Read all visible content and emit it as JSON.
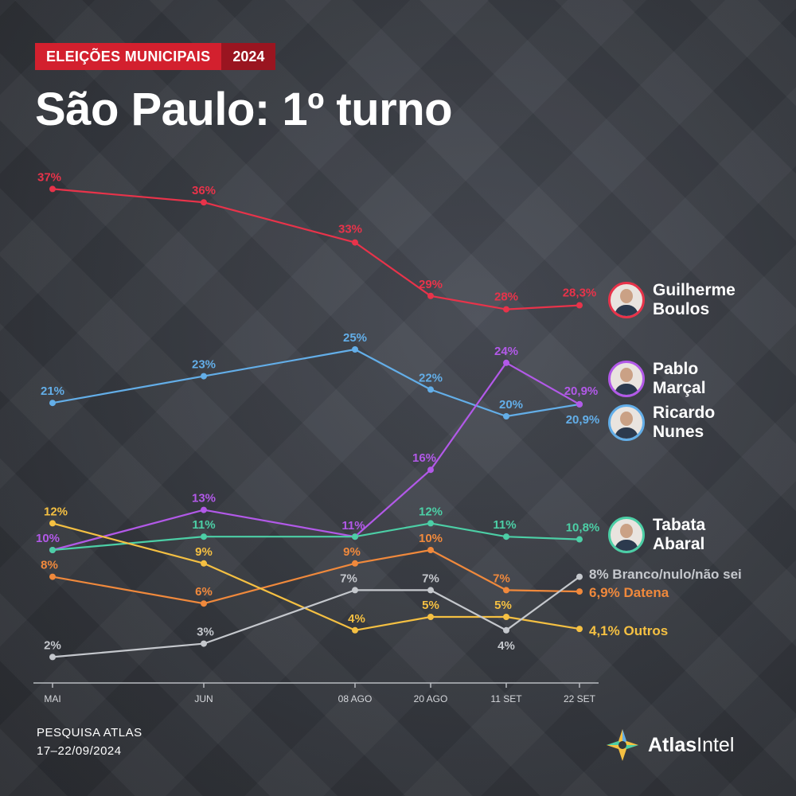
{
  "header": {
    "badge_label": "ELEIÇÕES MUNICIPAIS",
    "badge_year": "2024",
    "title": "São Paulo: 1º turno"
  },
  "chart_data": {
    "type": "line",
    "x": [
      "MAI",
      "JUN",
      "08 AGO",
      "20 AGO",
      "11 SET",
      "22 SET"
    ],
    "ylim": [
      0,
      40
    ],
    "grid": false,
    "series": [
      {
        "name": "Guilherme Boulos",
        "color": "#e8334a",
        "values": [
          37,
          36,
          33,
          29,
          28,
          28.3
        ],
        "labels": [
          "37%",
          "36%",
          "33%",
          "29%",
          "28%",
          "28,3%"
        ],
        "end_label": ""
      },
      {
        "name": "Ricardo Nunes",
        "color": "#63aee8",
        "values": [
          21,
          23,
          25,
          22,
          20,
          20.9
        ],
        "labels": [
          "21%",
          "23%",
          "25%",
          "22%",
          "20%",
          "20,9%"
        ],
        "end_label": ""
      },
      {
        "name": "Pablo Marçal",
        "color": "#b259e8",
        "values": [
          10,
          13,
          11,
          16,
          24,
          20.9
        ],
        "labels": [
          "10%",
          "13%",
          "11%",
          "16%",
          "24%",
          "20,9%"
        ],
        "end_label": ""
      },
      {
        "name": "Tabata Abaral",
        "color": "#4ccfa6",
        "values": [
          10,
          11,
          11,
          12,
          11,
          10.8
        ],
        "labels": [
          "",
          "11%",
          "",
          "12%",
          "11%",
          "10,8%"
        ],
        "end_label": ""
      },
      {
        "name": "Datena",
        "color": "#f0893c",
        "values": [
          8,
          6,
          9,
          10,
          7,
          6.9
        ],
        "labels": [
          "8%",
          "6%",
          "9%",
          "10%",
          "7%",
          ""
        ],
        "end_label": "6,9%  Datena"
      },
      {
        "name": "Outros",
        "color": "#f5c042",
        "values": [
          12,
          9,
          4,
          5,
          5,
          4.1
        ],
        "labels": [
          "12%",
          "9%",
          "4%",
          "5%",
          "5%",
          ""
        ],
        "end_label": "4,1%  Outros"
      },
      {
        "name": "Branco/nulo/não sei",
        "color": "#c5c8cd",
        "values": [
          2,
          3,
          7,
          7,
          4,
          8
        ],
        "labels": [
          "2%",
          "3%",
          "7%",
          "7%",
          "4%",
          ""
        ],
        "end_label": "8%  Branco/nulo/não sei"
      }
    ]
  },
  "candidates": [
    {
      "first": "Guilherme",
      "last": "Boulos",
      "color": "#e8334a"
    },
    {
      "first": "Pablo",
      "last": "Marçal",
      "color": "#b259e8"
    },
    {
      "first": "Ricardo",
      "last": "Nunes",
      "color": "#63aee8"
    },
    {
      "first": "Tabata",
      "last": "Abaral",
      "color": "#4ccfa6"
    }
  ],
  "footer": {
    "source_line1": "PESQUISA ATLAS",
    "source_line2": "17–22/09/2024",
    "logo_bold": "Atlas",
    "logo_light": "Intel"
  }
}
